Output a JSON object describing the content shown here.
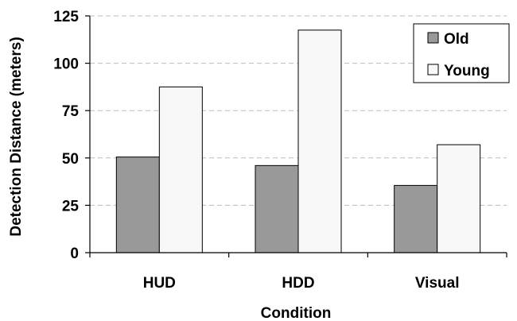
{
  "chart_data": {
    "type": "bar",
    "xlabel": "Condition",
    "ylabel": "Detection Distance (meters)",
    "categories": [
      "HUD",
      "HDD",
      "Visual"
    ],
    "series": [
      {
        "name": "Old",
        "values": [
          50.5,
          46,
          35.5
        ],
        "color": "#999999"
      },
      {
        "name": "Young",
        "values": [
          87.5,
          117.5,
          57
        ],
        "color": "#f8f8f8"
      }
    ],
    "ylim": [
      0,
      125
    ],
    "yticks": [
      "0",
      "25",
      "50",
      "75",
      "100",
      "125"
    ],
    "grid": "horizontal dashed",
    "legend_position": "top-right"
  }
}
